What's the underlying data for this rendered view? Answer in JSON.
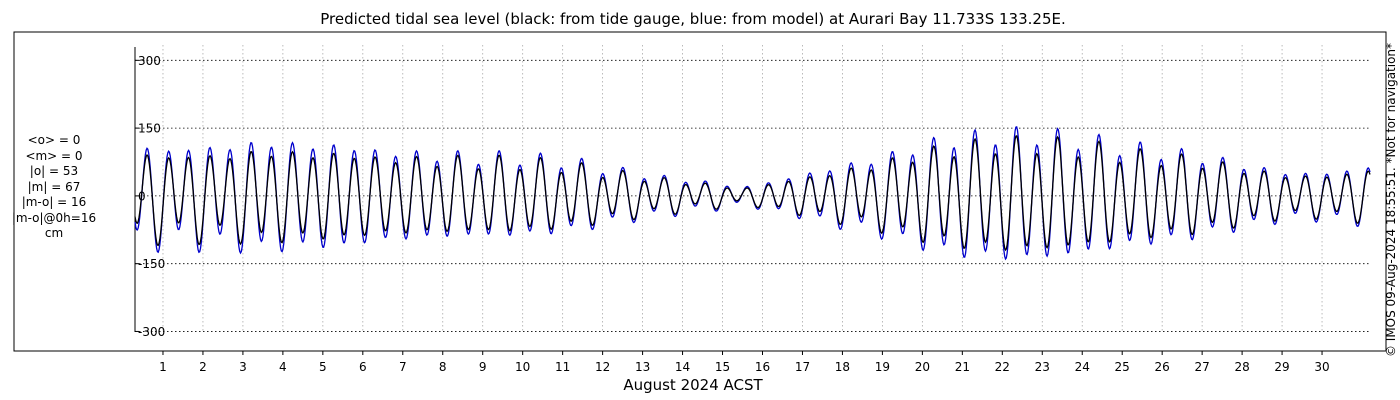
{
  "chart_data": {
    "type": "line",
    "title": "Predicted tidal sea level (black: from tide gauge, blue: from model) at Aurari Bay 11.733S 133.25E.",
    "xlabel": "August 2024 ACST",
    "ylabel": "",
    "ylim": [
      -330,
      345
    ],
    "xlim": [
      0.3,
      31.2
    ],
    "y_ticks": [
      -300,
      -150,
      0,
      150,
      300
    ],
    "y_tick_labels": [
      "-300",
      "-150",
      "0",
      "150",
      "300"
    ],
    "x_ticks": [
      1,
      2,
      3,
      4,
      5,
      6,
      7,
      8,
      9,
      10,
      11,
      12,
      13,
      14,
      15,
      16,
      17,
      18,
      19,
      20,
      21,
      22,
      23,
      24,
      25,
      26,
      27,
      28,
      29,
      30
    ],
    "x_tick_labels": [
      "1",
      "2",
      "3",
      "4",
      "5",
      "6",
      "7",
      "8",
      "9",
      "10",
      "11",
      "12",
      "13",
      "14",
      "15",
      "16",
      "17",
      "18",
      "19",
      "20",
      "21",
      "22",
      "23",
      "24",
      "25",
      "26",
      "27",
      "28",
      "29",
      "30"
    ],
    "grid": true,
    "series_colors": {
      "gauge": "#000000",
      "model": "#0000cc"
    },
    "series": [
      {
        "key": "gauge",
        "color": "#000000",
        "tide_envelope_day": [
          0.5,
          1.5,
          2.5,
          3.5,
          4.5,
          5.5,
          6.5,
          7.5,
          8.5,
          9.5,
          10.5,
          11.5,
          12.5,
          13.5,
          14.5,
          15.5,
          16.5,
          17.5,
          18.5,
          19.5,
          20.5,
          21.5,
          22.5,
          23.5,
          24.5,
          25.5,
          26.5,
          27.5,
          28.5,
          29.5,
          30.5,
          31.2
        ],
        "semidiurnal_amplitude": [
          85,
          85,
          85,
          95,
          90,
          90,
          80,
          78,
          75,
          75,
          70,
          60,
          45,
          35,
          25,
          15,
          30,
          45,
          60,
          80,
          100,
          110,
          115,
          110,
          100,
          85,
          80,
          65,
          50,
          40,
          45,
          55
        ],
        "diurnal_amplitude": [
          25,
          25,
          20,
          15,
          10,
          5,
          5,
          10,
          15,
          15,
          15,
          15,
          15,
          10,
          10,
          5,
          5,
          10,
          15,
          15,
          20,
          20,
          20,
          20,
          20,
          20,
          15,
          15,
          10,
          10,
          10,
          10
        ]
      },
      {
        "key": "model",
        "color": "#0000cc",
        "tide_envelope_day": [
          0.5,
          1.5,
          2.5,
          3.5,
          4.5,
          5.5,
          6.5,
          7.5,
          8.5,
          9.5,
          10.5,
          11.5,
          12.5,
          13.5,
          14.5,
          15.5,
          16.5,
          17.5,
          18.5,
          19.5,
          20.5,
          21.5,
          22.5,
          23.5,
          24.5,
          25.5,
          26.5,
          27.5,
          28.5,
          29.5,
          30.5,
          31.2
        ],
        "semidiurnal_amplitude": [
          100,
          100,
          105,
          115,
          110,
          108,
          95,
          90,
          85,
          85,
          80,
          70,
          52,
          40,
          30,
          18,
          35,
          55,
          72,
          95,
          120,
          130,
          135,
          128,
          115,
          100,
          92,
          75,
          58,
          46,
          52,
          62
        ],
        "diurnal_amplitude": [
          25,
          25,
          20,
          15,
          10,
          5,
          5,
          10,
          15,
          15,
          15,
          15,
          15,
          10,
          10,
          5,
          5,
          10,
          15,
          15,
          20,
          20,
          20,
          20,
          20,
          20,
          15,
          15,
          10,
          10,
          10,
          10
        ]
      }
    ]
  },
  "stats": {
    "lines": [
      "<o> = 0",
      "<m> = 0",
      "|o| = 53",
      "|m| = 67",
      "|m-o| = 16",
      "|m-o|@0h=16",
      "cm"
    ]
  },
  "credit": "© IMOS 09-Aug-2024 18:55:51. *Not for navigation*"
}
